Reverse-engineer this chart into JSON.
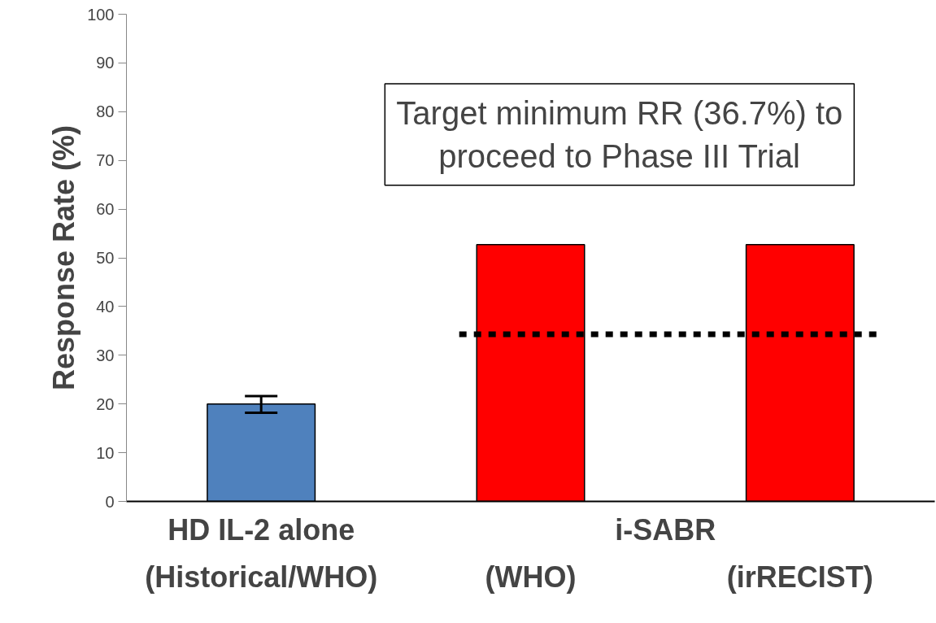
{
  "chart_data": {
    "type": "bar",
    "ylabel": "Response Rate (%)",
    "categories": [
      "HD IL-2 alone\n(Historical/WHO)",
      "(WHO)",
      "(irRECIST)"
    ],
    "values": [
      20,
      52.7,
      52.7
    ],
    "colors": [
      "#4f81bd",
      "#ff0000",
      "#ff0000"
    ],
    "errors": [
      [
        18.2,
        21.6
      ],
      null,
      null
    ],
    "ylim": [
      0,
      100
    ],
    "yticks": [
      0,
      10,
      20,
      30,
      40,
      50,
      60,
      70,
      80,
      90,
      100
    ],
    "ref_lines": [
      {
        "axis": "y",
        "value": 34.3,
        "color": "#000000",
        "line_style": "dotted"
      }
    ],
    "annotations": [
      "Target minimum RR (36.7%) to\nproceed to Phase III Trial",
      "i-SABR"
    ],
    "grid": false
  }
}
